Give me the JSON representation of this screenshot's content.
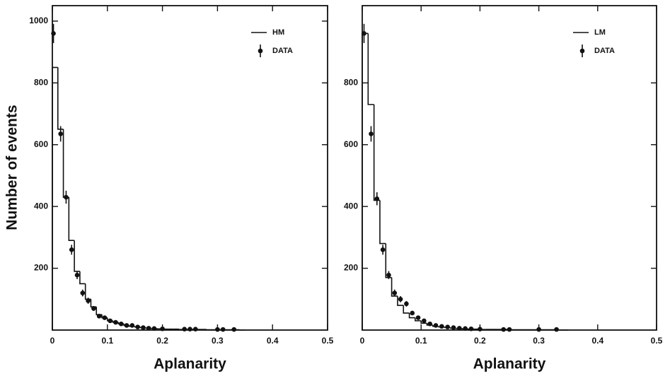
{
  "chart_data": [
    {
      "type": "histogram",
      "xlabel": "Aplanarity",
      "ylabel": "Number of events",
      "xlim": [
        0,
        0.5
      ],
      "xticks": [
        0,
        0.1,
        0.2,
        0.3,
        0.4,
        0.5
      ],
      "ylim": [
        0,
        1050
      ],
      "yticks": [
        200,
        400,
        600,
        800,
        1000
      ],
      "histogram": {
        "name": "HM",
        "color": "#111111",
        "bins": [
          0,
          0.01,
          0.02,
          0.03,
          0.04,
          0.05,
          0.06,
          0.07,
          0.08,
          0.09,
          0.1,
          0.11,
          0.12,
          0.13,
          0.14,
          0.15,
          0.16,
          0.17,
          0.18,
          0.19,
          0.2,
          0.21,
          0.22,
          0.23,
          0.24,
          0.25,
          0.26,
          0.27,
          0.28,
          0.29,
          0.3,
          0.31,
          0.32,
          0.33,
          0.34,
          0.35
        ],
        "counts": [
          850,
          650,
          430,
          290,
          190,
          150,
          100,
          75,
          50,
          40,
          30,
          25,
          20,
          15,
          12,
          10,
          8,
          6,
          5,
          4,
          3,
          3,
          3,
          2,
          2,
          2,
          2,
          2,
          1,
          1,
          1,
          1,
          1,
          1,
          0
        ]
      },
      "data": {
        "name": "DATA",
        "color": "#111111",
        "x": [
          0.002,
          0.015,
          0.025,
          0.035,
          0.045,
          0.055,
          0.065,
          0.075,
          0.085,
          0.095,
          0.105,
          0.115,
          0.125,
          0.135,
          0.145,
          0.155,
          0.165,
          0.175,
          0.185,
          0.2,
          0.24,
          0.25,
          0.26,
          0.3,
          0.31,
          0.33
        ],
        "values": [
          960,
          635,
          430,
          260,
          178,
          120,
          95,
          70,
          45,
          40,
          30,
          25,
          20,
          15,
          15,
          10,
          8,
          6,
          5,
          4,
          3,
          3,
          3,
          2,
          2,
          2
        ],
        "errors": [
          31,
          25,
          21,
          16,
          13,
          11,
          10,
          8,
          7,
          6,
          5,
          5,
          4,
          4,
          4,
          3,
          3,
          2,
          2,
          2,
          2,
          2,
          2,
          1,
          1,
          1
        ]
      }
    },
    {
      "type": "histogram",
      "xlabel": "Aplanarity",
      "xlim": [
        0,
        0.5
      ],
      "xticks": [
        0,
        0.1,
        0.2,
        0.3,
        0.4,
        0.5
      ],
      "ylim": [
        0,
        1050
      ],
      "yticks": [
        200,
        400,
        600,
        800
      ],
      "histogram": {
        "name": "LM",
        "color": "#111111",
        "bins": [
          0,
          0.01,
          0.02,
          0.03,
          0.04,
          0.05,
          0.06,
          0.07,
          0.08,
          0.09,
          0.1,
          0.11,
          0.12,
          0.13,
          0.14,
          0.15,
          0.16,
          0.17,
          0.18,
          0.19,
          0.2,
          0.21,
          0.22,
          0.23,
          0.24,
          0.25,
          0.26,
          0.27,
          0.28,
          0.29,
          0.3,
          0.31,
          0.32,
          0.33,
          0.34,
          0.35
        ],
        "counts": [
          960,
          730,
          420,
          280,
          170,
          110,
          80,
          55,
          40,
          30,
          22,
          16,
          12,
          10,
          8,
          6,
          5,
          4,
          3,
          3,
          2,
          2,
          2,
          2,
          2,
          1,
          1,
          1,
          1,
          1,
          1,
          1,
          1,
          0,
          0
        ]
      },
      "data": {
        "name": "DATA",
        "color": "#111111",
        "x": [
          0.003,
          0.015,
          0.025,
          0.035,
          0.045,
          0.055,
          0.065,
          0.075,
          0.085,
          0.095,
          0.105,
          0.115,
          0.125,
          0.135,
          0.145,
          0.155,
          0.165,
          0.175,
          0.185,
          0.2,
          0.24,
          0.25,
          0.3,
          0.33
        ],
        "values": [
          960,
          635,
          425,
          260,
          178,
          120,
          100,
          85,
          55,
          40,
          30,
          20,
          15,
          12,
          10,
          8,
          6,
          5,
          4,
          3,
          2,
          2,
          2,
          2
        ],
        "errors": [
          31,
          25,
          21,
          16,
          13,
          11,
          10,
          9,
          7,
          6,
          5,
          4,
          4,
          3,
          3,
          3,
          2,
          2,
          2,
          2,
          1,
          1,
          1,
          1
        ]
      }
    }
  ]
}
